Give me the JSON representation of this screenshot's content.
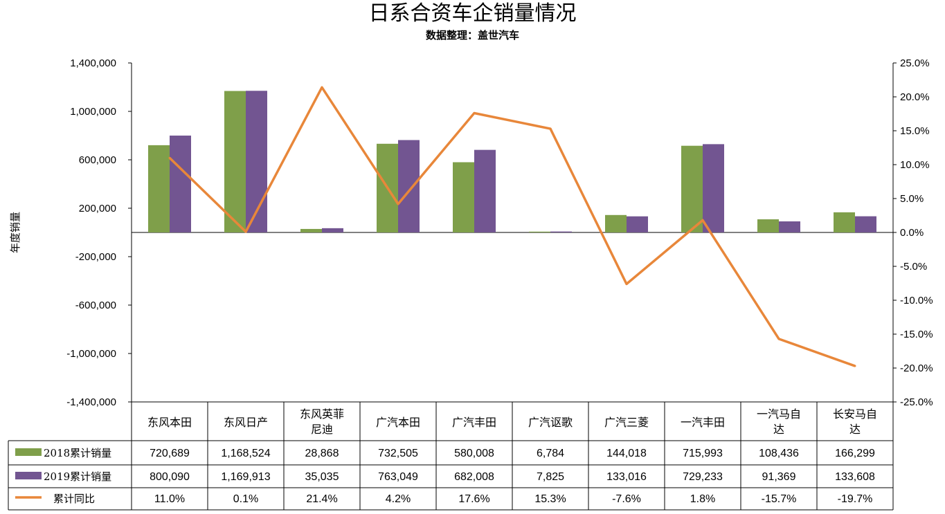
{
  "title": "日系合资车企销量情况",
  "subtitle": "数据整理：盖世汽车",
  "chart_data": {
    "type": "bar",
    "title": "日系合资车企销量情况",
    "subtitle": "数据整理：盖世汽车",
    "ylabel": "年度销量",
    "categories": [
      [
        "东风本田"
      ],
      [
        "东风日产"
      ],
      [
        "东风英菲",
        "尼迪"
      ],
      [
        "广汽本田"
      ],
      [
        "广汽丰田"
      ],
      [
        "广汽讴歌"
      ],
      [
        "广汽三菱"
      ],
      [
        "一汽丰田"
      ],
      [
        "一汽马自",
        "达"
      ],
      [
        "长安马自",
        "达"
      ]
    ],
    "series": [
      {
        "name": "2018累计销量",
        "type": "bar",
        "axis": "left",
        "color": "#7F9F4A",
        "values": [
          720689,
          1168524,
          28868,
          732505,
          580008,
          6784,
          144018,
          715993,
          108436,
          166299
        ],
        "labels": [
          "720,689",
          "1,168,524",
          "28,868",
          "732,505",
          "580,008",
          "6,784",
          "144,018",
          "715,993",
          "108,436",
          "166,299"
        ]
      },
      {
        "name": "2019累计销量",
        "type": "bar",
        "axis": "left",
        "color": "#725591",
        "values": [
          800090,
          1169913,
          35035,
          763049,
          682008,
          7825,
          133016,
          729233,
          91369,
          133608
        ],
        "labels": [
          "800,090",
          "1,169,913",
          "35,035",
          "763,049",
          "682,008",
          "7,825",
          "133,016",
          "729,233",
          "91,369",
          "133,608"
        ]
      },
      {
        "name": "累计同比",
        "type": "line",
        "axis": "right",
        "color": "#E8873A",
        "values": [
          11.0,
          0.1,
          21.4,
          4.2,
          17.6,
          15.3,
          -7.6,
          1.8,
          -15.7,
          -19.7
        ],
        "labels": [
          "11.0%",
          "0.1%",
          "21.4%",
          "4.2%",
          "17.6%",
          "15.3%",
          "-7.6%",
          "1.8%",
          "-15.7%",
          "-19.7%"
        ]
      }
    ],
    "left_axis": {
      "range": [
        -1400000,
        1400000
      ],
      "ticks": [
        1400000,
        1000000,
        600000,
        200000,
        -200000,
        -600000,
        -1000000,
        -1400000
      ],
      "tick_labels": [
        "1,400,000",
        "1,000,000",
        "600,000",
        "200,000",
        "-200,000",
        "-600,000",
        "-1,000,000",
        "-1,400,000"
      ]
    },
    "right_axis": {
      "range": [
        -25,
        25
      ],
      "ticks": [
        25,
        20,
        15,
        10,
        5,
        0,
        -5,
        -10,
        -15,
        -20,
        -25
      ],
      "tick_labels": [
        "25.0%",
        "20.0%",
        "15.0%",
        "10.0%",
        "5.0%",
        "0.0%",
        "-5.0%",
        "-10.0%",
        "-15.0%",
        "-20.0%",
        "-25.0%"
      ]
    },
    "legend_placement": "data-table",
    "grid": false
  }
}
